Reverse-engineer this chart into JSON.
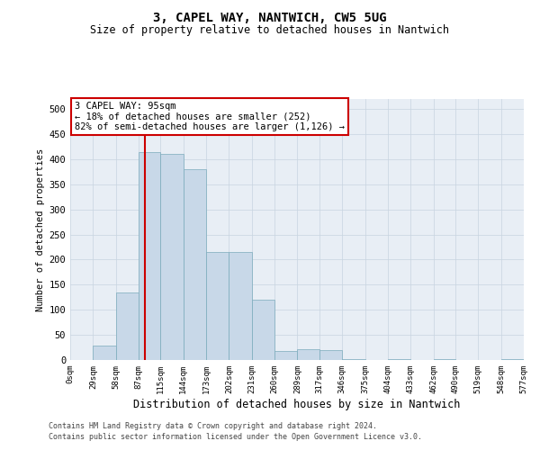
{
  "title_line1": "3, CAPEL WAY, NANTWICH, CW5 5UG",
  "title_line2": "Size of property relative to detached houses in Nantwich",
  "xlabel": "Distribution of detached houses by size in Nantwich",
  "ylabel": "Number of detached properties",
  "bin_edges": [
    0,
    29,
    58,
    87,
    115,
    144,
    173,
    202,
    231,
    260,
    289,
    317,
    346,
    375,
    404,
    433,
    462,
    490,
    519,
    548,
    577
  ],
  "bar_heights": [
    0,
    28,
    135,
    415,
    410,
    380,
    215,
    215,
    120,
    18,
    22,
    20,
    2,
    0,
    2,
    0,
    1,
    0,
    0,
    1
  ],
  "bar_color": "#c8d8e8",
  "bar_edge_color": "#7aaabb",
  "property_size": 95,
  "property_line_color": "#cc0000",
  "annotation_text": "3 CAPEL WAY: 95sqm\n← 18% of detached houses are smaller (252)\n82% of semi-detached houses are larger (1,126) →",
  "annotation_box_color": "#ffffff",
  "annotation_box_edge_color": "#cc0000",
  "ylim": [
    0,
    520
  ],
  "yticks": [
    0,
    50,
    100,
    150,
    200,
    250,
    300,
    350,
    400,
    450,
    500
  ],
  "footer_line1": "Contains HM Land Registry data © Crown copyright and database right 2024.",
  "footer_line2": "Contains public sector information licensed under the Open Government Licence v3.0.",
  "background_color": "#ffffff",
  "plot_bg_color": "#e8eef5",
  "grid_color": "#c8d4e0"
}
